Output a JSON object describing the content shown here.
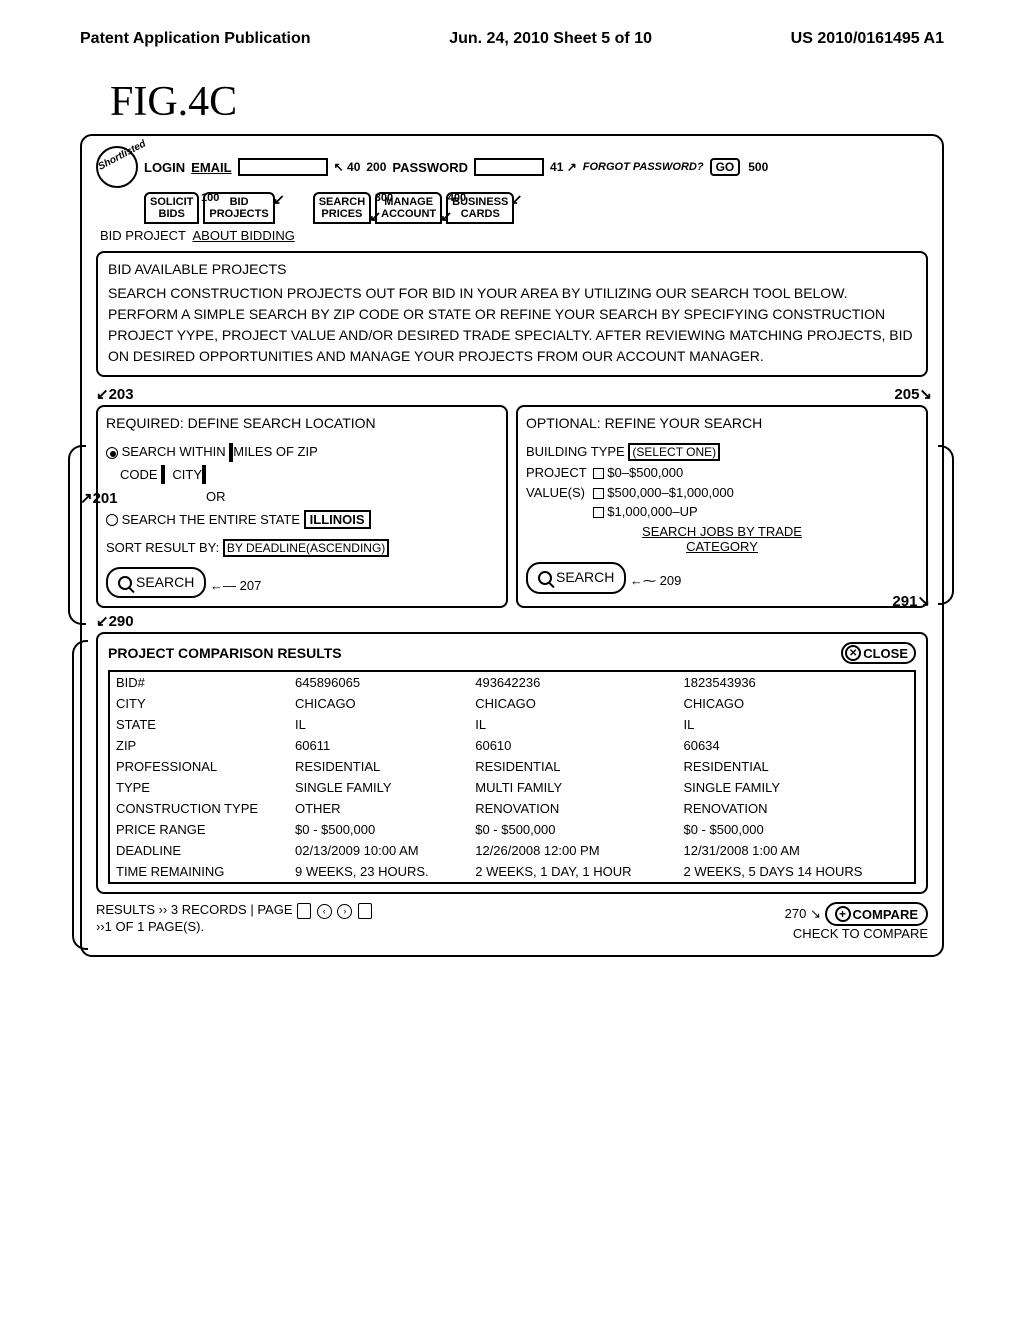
{
  "header": {
    "left": "Patent Application Publication",
    "center": "Jun. 24, 2010  Sheet 5 of 10",
    "right": "US 2010/0161495 A1"
  },
  "fig_label": "FIG.4C",
  "login": {
    "login_label": "LOGIN",
    "email_label": "EMAIL",
    "password_label": "PASSWORD",
    "forgot_label": "FORGOT PASSWORD?",
    "go_label": "GO",
    "ref_40": "40",
    "ref_200": "200",
    "ref_41": "41",
    "ref_500": "500"
  },
  "logo_text": "Shortlisted",
  "tabs": [
    {
      "line1": "SOLICIT",
      "line2": "BIDS",
      "num": "100"
    },
    {
      "line1": "BID",
      "line2": "PROJECTS",
      "num": ""
    },
    {
      "line1": "SEARCH",
      "line2": "PRICES",
      "num": "300"
    },
    {
      "line1": "MANAGE",
      "line2": "ACCOUNT",
      "num": "400"
    },
    {
      "line1": "BUSINESS",
      "line2": "CARDS",
      "num": ""
    }
  ],
  "subnav": {
    "plain": "BID PROJECT",
    "ul": "ABOUT BIDDING"
  },
  "avail": {
    "title": "BID AVAILABLE PROJECTS",
    "desc": "SEARCH CONSTRUCTION PROJECTS OUT FOR BID IN YOUR AREA BY UTILIZING OUR SEARCH TOOL BELOW. PERFORM A SIMPLE SEARCH BY ZIP CODE OR STATE OR REFINE YOUR SEARCH BY SPECIFYING CONSTRUCTION PROJECT YYPE, PROJECT VALUE AND/OR DESIRED TRADE SPECIALTY. AFTER REVIEWING MATCHING PROJECTS, BID ON DESIRED OPPORTUNITIES AND MANAGE YOUR PROJECTS FROM OUR ACCOUNT MANAGER."
  },
  "ref_203": "203",
  "ref_205": "205",
  "left_search": {
    "title": "REQUIRED: DEFINE SEARCH LOCATION",
    "within_label": "SEARCH WITHIN",
    "miles_label": "MILES OF ZIP",
    "code_label": "CODE",
    "city_label": "CITY",
    "ref_201": "201",
    "or_label": "OR",
    "entire_state": "SEARCH THE ENTIRE STATE",
    "state_val": "ILLINOIS",
    "sort_label": "SORT RESULT BY:",
    "sort_val": "BY DEADLINE(ASCENDING)",
    "search_btn": "SEARCH",
    "ref_207": "207"
  },
  "right_search": {
    "title": "OPTIONAL: REFINE YOUR SEARCH",
    "building_label": "BUILDING TYPE",
    "building_val": "(SELECT ONE)",
    "project_label": "PROJECT",
    "values_label": "VALUE(S)",
    "opt1": "$0–$500,000",
    "opt2": "$500,000–$1,000,000",
    "opt3": "$1,000,000–UP",
    "trade_label": "SEARCH JOBS BY TRADE",
    "cat_label": "CATEGORY",
    "search_btn": "SEARCH",
    "ref_209": "209",
    "ref_291": "291"
  },
  "ref_290": "290",
  "results": {
    "title": "PROJECT COMPARISON RESULTS",
    "close_label": "CLOSE",
    "rows": [
      {
        "label": "BID#",
        "c1": "645896065",
        "c2": "493642236",
        "c3": "1823543936"
      },
      {
        "label": "CITY",
        "c1": "CHICAGO",
        "c2": "CHICAGO",
        "c3": "CHICAGO"
      },
      {
        "label": "STATE",
        "c1": "IL",
        "c2": "IL",
        "c3": "IL"
      },
      {
        "label": "ZIP",
        "c1": "60611",
        "c2": "60610",
        "c3": "60634"
      },
      {
        "label": "PROFESSIONAL",
        "c1": "RESIDENTIAL",
        "c2": "RESIDENTIAL",
        "c3": "RESIDENTIAL"
      },
      {
        "label": "TYPE",
        "c1": "SINGLE FAMILY",
        "c2": "MULTI FAMILY",
        "c3": "SINGLE FAMILY"
      },
      {
        "label": "CONSTRUCTION TYPE",
        "c1": "OTHER",
        "c2": "RENOVATION",
        "c3": "RENOVATION"
      },
      {
        "label": "PRICE RANGE",
        "c1": "$0 - $500,000",
        "c2": "$0 - $500,000",
        "c3": "$0 - $500,000"
      },
      {
        "label": "DEADLINE",
        "c1": "02/13/2009 10:00 AM",
        "c2": "12/26/2008 12:00 PM",
        "c3": "12/31/2008 1:00 AM"
      },
      {
        "label": "TIME REMAINING",
        "c1": "9 WEEKS, 23 HOURS.",
        "c2": "2 WEEKS, 1 DAY, 1 HOUR",
        "c3": "2 WEEKS, 5 DAYS 14 HOURS"
      }
    ]
  },
  "footer": {
    "results_text": "RESULTS ›› 3 RECORDS | PAGE",
    "page_text": "››1 OF 1 PAGE(S).",
    "ref_270": "270",
    "compare_label": "COMPARE",
    "check_label": "CHECK TO COMPARE"
  }
}
